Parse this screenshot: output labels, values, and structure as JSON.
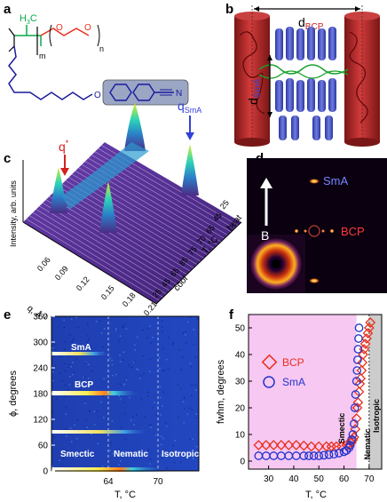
{
  "panel_labels": {
    "a": "a",
    "b": "b",
    "c": "c",
    "d": "d",
    "e": "e",
    "f": "f"
  },
  "panel_a": {
    "ch3": "H",
    "ch3_sub": "3",
    "ch3_c": "C",
    "m": "m",
    "n": "n",
    "o1": "O",
    "o2": "O",
    "o3": "O",
    "nitrile": "N"
  },
  "panel_b": {
    "d_bcp": "d",
    "d_bcp_sub": "BCP",
    "d_sma": "d",
    "d_sma_sub": "SmA"
  },
  "panel_c": {
    "q_star": "q",
    "q_star_sup": "*",
    "q_sma": "q",
    "q_sma_sub": "SmA",
    "ylabel": "Intensity, arb. units",
    "xlabel": "q, Å",
    "xlabel_sup": "-1",
    "q_ticks": [
      "0.06",
      "0.09",
      "0.12",
      "0.15",
      "0.18",
      "0.21"
    ],
    "t_ticks": [
      "25",
      "45",
      "65",
      "70",
      "75",
      "85",
      "65",
      "45",
      "25"
    ],
    "t_label": "T, °C",
    "heat": "heat",
    "cool": "cool"
  },
  "panel_d": {
    "sma": "SmA",
    "bcp": "BCP",
    "field": "B"
  },
  "chart_data": [
    {
      "type": "heatmap",
      "xlabel": "T, °C",
      "ylabel": "ϕ, degrees",
      "y_ticks": [
        "0",
        "60",
        "120",
        "180",
        "240",
        "300",
        "360"
      ],
      "x_ticks": [
        "64",
        "70"
      ],
      "annotations": [
        "SmA",
        "BCP",
        "Smectic",
        "Nematic",
        "Isotropic"
      ]
    },
    {
      "type": "scatter",
      "xlabel": "T, °C",
      "ylabel": "fwhm, degrees",
      "x_ticks": [
        "30",
        "40",
        "50",
        "60",
        "70"
      ],
      "y_ticks": [
        "0",
        "10",
        "20",
        "30",
        "40",
        "50"
      ],
      "xlim": [
        22,
        75
      ],
      "ylim": [
        -3,
        55
      ],
      "region_labels": [
        "Smectic",
        "Nematic",
        "Isotropic"
      ],
      "series": [
        {
          "name": "BCP",
          "marker": "diamond",
          "color": "#e8301c",
          "x": [
            26,
            29,
            32,
            35,
            38,
            41,
            44,
            47,
            50,
            53,
            55,
            57,
            59,
            61,
            62,
            63,
            63.5,
            64,
            64.5,
            65,
            65.3,
            65.6,
            66,
            66.3,
            66.6,
            67,
            67.3,
            67.6,
            68,
            68.5,
            69,
            69.5,
            70,
            70.5
          ],
          "y": [
            6,
            6,
            6,
            6,
            6,
            6,
            5.8,
            5.5,
            5.5,
            5.5,
            5.5,
            5.5,
            5.5,
            6,
            6,
            7,
            8,
            9,
            12,
            16,
            20,
            22,
            26,
            29,
            31,
            34,
            37,
            40,
            42,
            44,
            46,
            48,
            50,
            52
          ]
        },
        {
          "name": "SmA",
          "marker": "circle",
          "color": "#2233cc",
          "x": [
            26,
            29,
            32,
            35,
            38,
            41,
            44,
            46,
            48,
            50,
            52,
            54,
            56,
            58,
            60,
            61,
            62,
            62.5,
            63,
            63.5,
            64,
            64.3,
            64.6,
            65,
            65.2,
            65.4,
            65.6,
            65.8,
            66
          ],
          "y": [
            2,
            2,
            2,
            2,
            2,
            2,
            2,
            2,
            2,
            2,
            2.2,
            2.4,
            2.6,
            3,
            3.5,
            4,
            5,
            6,
            8,
            10,
            14,
            20,
            25,
            30,
            34,
            38,
            42,
            46,
            50
          ]
        }
      ]
    }
  ]
}
